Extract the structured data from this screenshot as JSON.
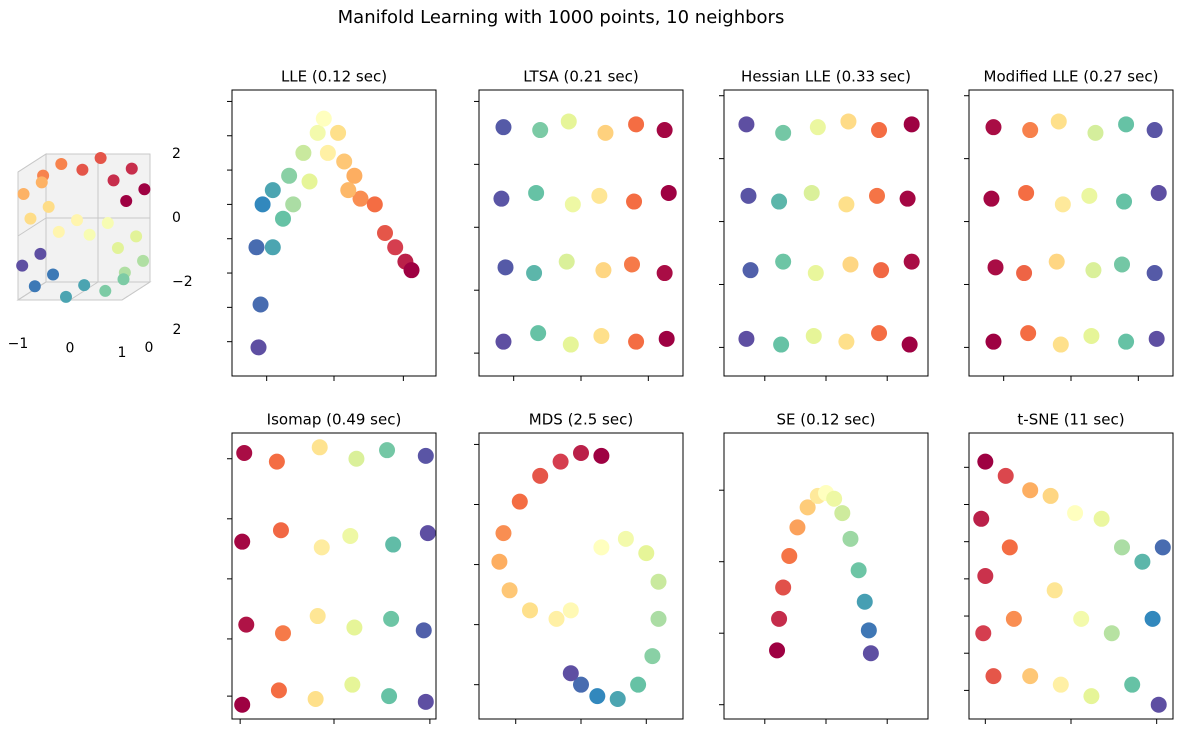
{
  "title": "Manifold Learning with 1000 points, 10 neighbors",
  "colormap": [
    "#9e0142",
    "#d53e4f",
    "#f46d43",
    "#fdae61",
    "#fee08b",
    "#ffffbf",
    "#e6f598",
    "#abdda4",
    "#66c2a5",
    "#3288bd",
    "#5e4fa2"
  ],
  "chart_data": [
    {
      "type": "scatter3d",
      "x": [
        1.0,
        1.0,
        0.757,
        0.757,
        0.158,
        0.158,
        -0.598,
        -0.598,
        -0.974,
        -0.974,
        -0.841,
        -0.841,
        -0.296,
        -0.296,
        0.296,
        0.296,
        0.841,
        0.841,
        0.974,
        0.974,
        0.598,
        0.598,
        -0.158,
        -0.158,
        -0.757,
        -0.757,
        -1.0,
        -1.0
      ],
      "y": [
        0.3,
        1.6,
        0.3,
        1.6,
        0.3,
        1.6,
        0.3,
        1.6,
        0.3,
        1.6,
        0.3,
        1.6,
        0.3,
        1.6,
        0.3,
        1.6,
        0.3,
        1.6,
        0.3,
        1.6,
        0.3,
        1.6,
        0.3,
        1.6,
        0.3,
        1.6,
        0.3,
        1.6
      ],
      "z": [
        1.01,
        1.01,
        1.654,
        1.654,
        1.987,
        1.987,
        1.801,
        1.801,
        1.227,
        1.227,
        0.46,
        0.46,
        0.045,
        0.045,
        -0.045,
        -0.045,
        -0.46,
        -0.46,
        -1.227,
        -1.227,
        -1.801,
        -1.801,
        -1.987,
        -1.987,
        -1.654,
        -1.654,
        -1.01,
        -1.01
      ],
      "c": [
        -4.7,
        -4.7,
        -4.0,
        -4.0,
        -3.3,
        -3.3,
        -2.5,
        -2.5,
        -1.8,
        -1.8,
        -1.0,
        -1.0,
        -0.3,
        -0.3,
        0.3,
        0.3,
        1.0,
        1.0,
        1.8,
        1.8,
        2.5,
        2.5,
        3.3,
        3.3,
        4.0,
        4.0,
        4.7,
        4.7
      ],
      "xlim": [
        -1,
        1
      ],
      "ylim": [
        0,
        2
      ],
      "zlim": [
        -2,
        2
      ],
      "xticks": [
        {
          "value": -1,
          "label": "−1"
        },
        0,
        1
      ],
      "yticks": [
        0,
        2
      ],
      "zticks": [
        {
          "value": -2,
          "label": "−2"
        },
        0,
        2
      ]
    },
    {
      "type": "scatter",
      "title": "LLE (0.12 sec)",
      "x": [
        0.13,
        0.14,
        0.12,
        0.15,
        0.2,
        0.2,
        0.25,
        0.28,
        0.3,
        0.35,
        0.38,
        0.42,
        0.45,
        0.47,
        0.52,
        0.55,
        0.6,
        0.63,
        0.7,
        0.75,
        0.8,
        0.85,
        0.88,
        0.57
      ],
      "y": [
        0.1,
        0.25,
        0.45,
        0.6,
        0.65,
        0.45,
        0.55,
        0.7,
        0.6,
        0.78,
        0.68,
        0.85,
        0.9,
        0.78,
        0.85,
        0.75,
        0.7,
        0.62,
        0.6,
        0.5,
        0.45,
        0.4,
        0.37,
        0.65
      ],
      "c": [
        1,
        0.95,
        0.95,
        0.9,
        0.85,
        0.85,
        0.8,
        0.75,
        0.7,
        0.65,
        0.6,
        0.55,
        0.5,
        0.45,
        0.4,
        0.35,
        0.3,
        0.25,
        0.2,
        0.15,
        0.1,
        0.05,
        0,
        0.32
      ],
      "xlim": [
        0,
        1
      ],
      "ylim": [
        0,
        1
      ],
      "xticks": [
        0.17,
        0.5,
        0.84
      ],
      "yticks": [
        0.12,
        0.24,
        0.36,
        0.48,
        0.6,
        0.72,
        0.84,
        0.96
      ]
    },
    {
      "type": "scatter",
      "title": "LTSA (0.21 sec)",
      "x": [
        0.12,
        0.29,
        0.45,
        0.6,
        0.77,
        0.92,
        0.13,
        0.27,
        0.43,
        0.61,
        0.75,
        0.91,
        0.11,
        0.28,
        0.46,
        0.59,
        0.76,
        0.93,
        0.12,
        0.3,
        0.44,
        0.62,
        0.77,
        0.91
      ],
      "y": [
        0.12,
        0.15,
        0.11,
        0.14,
        0.12,
        0.13,
        0.38,
        0.36,
        0.4,
        0.37,
        0.39,
        0.36,
        0.62,
        0.64,
        0.6,
        0.63,
        0.61,
        0.64,
        0.87,
        0.86,
        0.89,
        0.85,
        0.88,
        0.86
      ],
      "c": [
        1,
        0.8,
        0.6,
        0.4,
        0.2,
        0,
        0.98,
        0.82,
        0.62,
        0.38,
        0.22,
        0.02,
        0.99,
        0.8,
        0.57,
        0.42,
        0.2,
        0,
        0.98,
        0.77,
        0.6,
        0.37,
        0.2,
        0.01
      ],
      "xlim": [
        0,
        1
      ],
      "ylim": [
        0,
        1
      ],
      "xticks": [
        0.17,
        0.5,
        0.83
      ],
      "yticks": [
        0.08,
        0.3,
        0.52,
        0.74,
        0.96
      ]
    },
    {
      "type": "scatter",
      "title": "Hessian LLE (0.33 sec)",
      "x": [
        0.11,
        0.28,
        0.44,
        0.6,
        0.76,
        0.91,
        0.13,
        0.29,
        0.45,
        0.62,
        0.77,
        0.92,
        0.12,
        0.27,
        0.43,
        0.6,
        0.75,
        0.9,
        0.11,
        0.29,
        0.46,
        0.61,
        0.76,
        0.92
      ],
      "y": [
        0.13,
        0.11,
        0.14,
        0.12,
        0.15,
        0.11,
        0.37,
        0.4,
        0.36,
        0.39,
        0.37,
        0.4,
        0.63,
        0.61,
        0.64,
        0.6,
        0.63,
        0.62,
        0.88,
        0.85,
        0.87,
        0.89,
        0.86,
        0.88
      ],
      "c": [
        1,
        0.8,
        0.6,
        0.4,
        0.2,
        0,
        0.97,
        0.79,
        0.59,
        0.38,
        0.19,
        0.02,
        0.99,
        0.82,
        0.62,
        0.4,
        0.21,
        0.01,
        1,
        0.78,
        0.58,
        0.39,
        0.2,
        0
      ],
      "xlim": [
        0,
        1
      ],
      "ylim": [
        0,
        1
      ],
      "xticks": [
        0.2,
        0.5,
        0.8
      ],
      "yticks": [
        0.1,
        0.32,
        0.54,
        0.76,
        0.98
      ]
    },
    {
      "type": "scatter",
      "title": "Modified LLE (0.27 sec)",
      "x": [
        0.12,
        0.29,
        0.45,
        0.6,
        0.77,
        0.92,
        0.13,
        0.27,
        0.43,
        0.61,
        0.75,
        0.91,
        0.11,
        0.28,
        0.46,
        0.59,
        0.76,
        0.93,
        0.12,
        0.3,
        0.44,
        0.62,
        0.77,
        0.91
      ],
      "y": [
        0.12,
        0.15,
        0.11,
        0.14,
        0.12,
        0.13,
        0.38,
        0.36,
        0.4,
        0.37,
        0.39,
        0.36,
        0.62,
        0.64,
        0.6,
        0.63,
        0.61,
        0.64,
        0.87,
        0.86,
        0.89,
        0.85,
        0.88,
        0.86
      ],
      "c": [
        0,
        0.2,
        0.4,
        0.6,
        0.8,
        1,
        0.02,
        0.18,
        0.38,
        0.62,
        0.78,
        0.98,
        0.01,
        0.2,
        0.43,
        0.58,
        0.8,
        1,
        0.02,
        0.23,
        0.4,
        0.63,
        0.8,
        0.99
      ],
      "xlim": [
        0,
        1
      ],
      "ylim": [
        0,
        1
      ],
      "xticks": [
        0.17,
        0.5,
        0.83
      ],
      "yticks": [
        0.1,
        0.32,
        0.54,
        0.76,
        0.98
      ]
    },
    {
      "type": "scatter",
      "title": "Isomap (0.49 sec)",
      "x": [
        0.05,
        0.23,
        0.41,
        0.59,
        0.77,
        0.95,
        0.07,
        0.25,
        0.42,
        0.6,
        0.78,
        0.94,
        0.05,
        0.24,
        0.44,
        0.58,
        0.79,
        0.96,
        0.06,
        0.22,
        0.43,
        0.61,
        0.76,
        0.95
      ],
      "y": [
        0.05,
        0.1,
        0.07,
        0.12,
        0.08,
        0.06,
        0.33,
        0.3,
        0.36,
        0.32,
        0.35,
        0.31,
        0.62,
        0.66,
        0.6,
        0.64,
        0.61,
        0.65,
        0.93,
        0.9,
        0.95,
        0.91,
        0.94,
        0.92
      ],
      "c": [
        0,
        0.2,
        0.4,
        0.6,
        0.8,
        1,
        0.03,
        0.22,
        0.42,
        0.6,
        0.79,
        0.97,
        0.01,
        0.19,
        0.44,
        0.57,
        0.81,
        1,
        0.02,
        0.2,
        0.41,
        0.62,
        0.78,
        0.99
      ],
      "xlim": [
        0,
        1
      ],
      "ylim": [
        0,
        1
      ],
      "xticks": [
        0.04,
        0.5,
        0.97
      ],
      "yticks": [
        0.08,
        0.28,
        0.49,
        0.7,
        0.91
      ]
    },
    {
      "type": "scatter",
      "title": "MDS (2.5 sec)",
      "x": [
        0.6,
        0.5,
        0.4,
        0.3,
        0.2,
        0.12,
        0.1,
        0.15,
        0.25,
        0.38,
        0.45,
        0.6,
        0.72,
        0.82,
        0.88,
        0.88,
        0.85,
        0.78,
        0.68,
        0.58,
        0.5,
        0.45
      ],
      "y": [
        0.92,
        0.93,
        0.9,
        0.85,
        0.76,
        0.65,
        0.55,
        0.45,
        0.38,
        0.35,
        0.38,
        0.6,
        0.63,
        0.58,
        0.48,
        0.35,
        0.22,
        0.12,
        0.07,
        0.08,
        0.12,
        0.16
      ],
      "c": [
        0,
        0.05,
        0.1,
        0.15,
        0.2,
        0.25,
        0.3,
        0.35,
        0.4,
        0.45,
        0.48,
        0.5,
        0.55,
        0.6,
        0.65,
        0.7,
        0.75,
        0.8,
        0.85,
        0.9,
        0.95,
        1
      ],
      "xlim": [
        0,
        1
      ],
      "ylim": [
        0,
        1
      ],
      "xticks": [
        0.18,
        0.5,
        0.82
      ],
      "yticks": [
        0.12,
        0.33,
        0.54,
        0.75,
        0.96
      ]
    },
    {
      "type": "scatter",
      "title": "SE (0.12 sec)",
      "x": [
        0.26,
        0.27,
        0.29,
        0.32,
        0.36,
        0.41,
        0.46,
        0.5,
        0.54,
        0.58,
        0.62,
        0.66,
        0.69,
        0.71,
        0.72
      ],
      "y": [
        0.24,
        0.35,
        0.46,
        0.57,
        0.67,
        0.74,
        0.78,
        0.79,
        0.77,
        0.72,
        0.63,
        0.52,
        0.41,
        0.31,
        0.23
      ],
      "c": [
        0,
        0.07,
        0.14,
        0.21,
        0.28,
        0.36,
        0.43,
        0.5,
        0.57,
        0.64,
        0.72,
        0.79,
        0.86,
        0.93,
        1
      ],
      "xlim": [
        0,
        1
      ],
      "ylim": [
        0,
        1
      ],
      "xticks": [
        0.2,
        0.5,
        0.8
      ],
      "yticks": [
        0.05,
        0.3,
        0.55,
        0.8
      ]
    },
    {
      "type": "scatter",
      "title": "t-SNE (11 sec)",
      "x": [
        0.08,
        0.06,
        0.08,
        0.07,
        0.12,
        0.18,
        0.2,
        0.22,
        0.3,
        0.3,
        0.4,
        0.42,
        0.45,
        0.52,
        0.55,
        0.6,
        0.65,
        0.7,
        0.75,
        0.8,
        0.85,
        0.9,
        0.95,
        0.93
      ],
      "y": [
        0.9,
        0.7,
        0.5,
        0.3,
        0.15,
        0.85,
        0.6,
        0.35,
        0.8,
        0.15,
        0.78,
        0.45,
        0.12,
        0.72,
        0.35,
        0.08,
        0.7,
        0.3,
        0.6,
        0.12,
        0.55,
        0.35,
        0.6,
        0.05
      ],
      "c": [
        0,
        0.05,
        0.08,
        0.1,
        0.15,
        0.12,
        0.2,
        0.25,
        0.3,
        0.35,
        0.38,
        0.42,
        0.45,
        0.5,
        0.55,
        0.6,
        0.58,
        0.68,
        0.7,
        0.8,
        0.82,
        0.9,
        0.95,
        1
      ],
      "xlim": [
        0,
        1
      ],
      "ylim": [
        0,
        1
      ],
      "xticks": [
        0.08,
        0.5,
        0.92
      ],
      "yticks": [
        0.1,
        0.23,
        0.36,
        0.49,
        0.62,
        0.75,
        0.88
      ]
    }
  ]
}
